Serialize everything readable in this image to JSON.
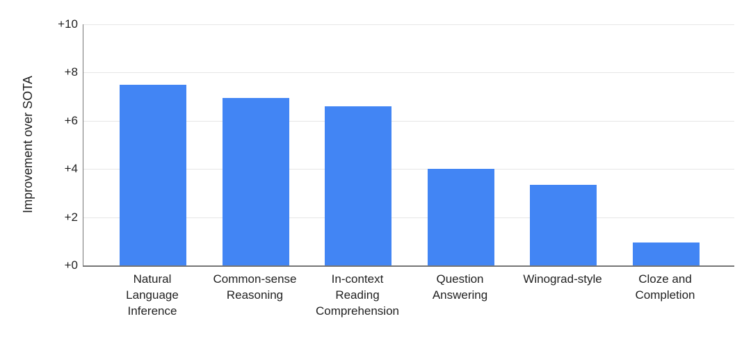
{
  "chart_data": {
    "type": "bar",
    "title": "",
    "xlabel": "",
    "ylabel": "Improvement over SOTA",
    "ylim": [
      0,
      10
    ],
    "grid": true,
    "legend": "none",
    "y_ticks": [
      {
        "value": 0,
        "label": "+0"
      },
      {
        "value": 2,
        "label": "+2"
      },
      {
        "value": 4,
        "label": "+4"
      },
      {
        "value": 6,
        "label": "+6"
      },
      {
        "value": 8,
        "label": "+8"
      },
      {
        "value": 10,
        "label": "+10"
      }
    ],
    "categories": [
      "Natural Language Inference",
      "Common-sense Reasoning",
      "In-context Reading Comprehension",
      "Question Answering",
      "Winograd-style",
      "Cloze and Completion"
    ],
    "category_display_lines": [
      [
        "Natural",
        "Language",
        "Inference"
      ],
      [
        "Common-sense",
        "Reasoning"
      ],
      [
        "In-context",
        "Reading",
        "Comprehension"
      ],
      [
        "Question",
        "Answering"
      ],
      [
        "Winograd-style"
      ],
      [
        "Cloze and",
        "Completion"
      ]
    ],
    "values": [
      7.5,
      6.95,
      6.6,
      4.0,
      3.35,
      0.95
    ],
    "colors": {
      "bar": "#4285f4",
      "gridline": "#e6e6e6",
      "axis_line": "#757575",
      "text": "#1f1f1f",
      "background": "#ffffff"
    }
  }
}
